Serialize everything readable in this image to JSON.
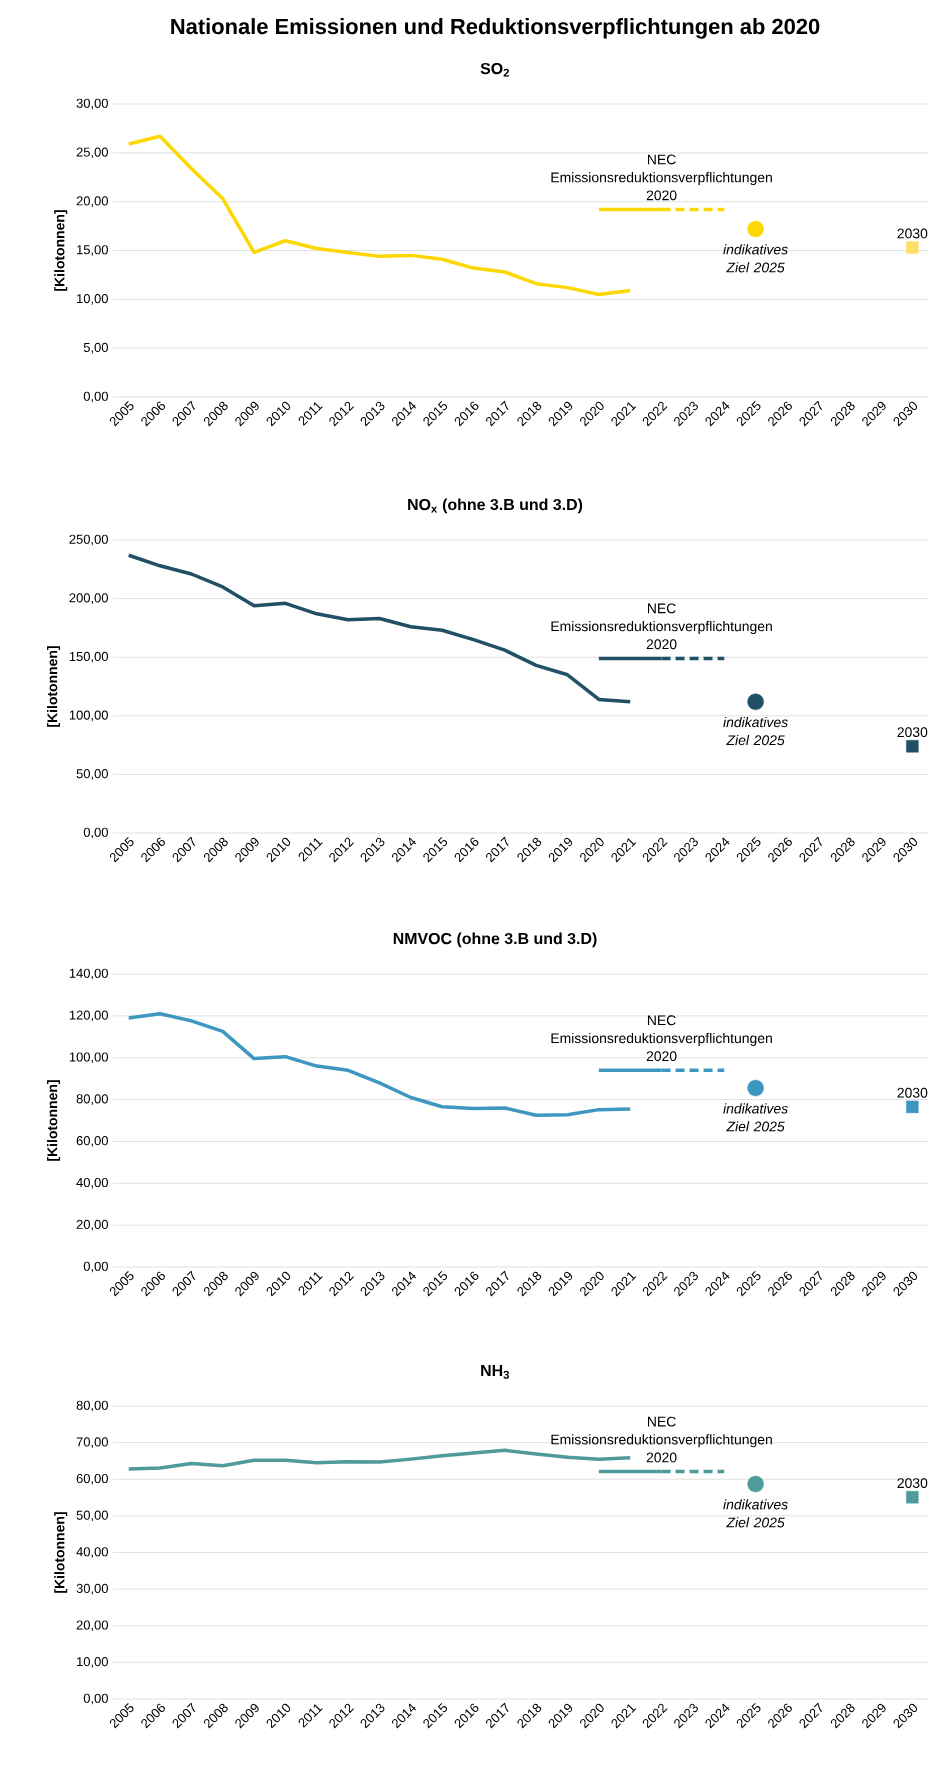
{
  "chart_data": [
    {
      "type": "line",
      "title": "Nationale Emissionen und Reduktionsverpflichtungen ab 2020",
      "subtitle": "SO$_{2}$",
      "ylabel": "[Kilotonnen]",
      "categories": [
        "2005",
        "2006",
        "2007",
        "2008",
        "2009",
        "2010",
        "2011",
        "2012",
        "2013",
        "2014",
        "2015",
        "2016",
        "2017",
        "2018",
        "2019",
        "2020",
        "2021",
        "2022",
        "2023",
        "2024",
        "2025",
        "2026",
        "2027",
        "2028",
        "2029",
        "2030"
      ],
      "ylim": [
        0,
        30
      ],
      "yticks": [
        {
          "value": 0,
          "label": "0,00"
        },
        {
          "value": 5,
          "label": "5,00"
        },
        {
          "value": 10,
          "label": "10,00"
        },
        {
          "value": 15,
          "label": "15,00"
        },
        {
          "value": 20,
          "label": "20,00"
        },
        {
          "value": 25,
          "label": "25,00"
        },
        {
          "value": 30,
          "label": "30,00"
        }
      ],
      "grid": "y",
      "series": [
        {
          "type": "line",
          "color": "#ffd700",
          "values": [
            25.9,
            26.7,
            23.4,
            20.3,
            14.8,
            16.0,
            15.2,
            14.8,
            14.4,
            14.5,
            14.1,
            13.2,
            12.8,
            11.6,
            11.2,
            10.5,
            10.9,
            null,
            null,
            null,
            null,
            null,
            null,
            null,
            null,
            null
          ]
        },
        {
          "type": "line",
          "color": "#ffd700",
          "line_style": "solid",
          "values": [
            null,
            null,
            null,
            null,
            null,
            null,
            null,
            null,
            null,
            null,
            null,
            null,
            null,
            null,
            null,
            19.2,
            19.2,
            19.2,
            null,
            null,
            null,
            null,
            null,
            null,
            null,
            null
          ]
        },
        {
          "type": "line",
          "color": "#ffd700",
          "line_style": "dashed",
          "values": [
            null,
            null,
            null,
            null,
            null,
            null,
            null,
            null,
            null,
            null,
            null,
            null,
            null,
            null,
            null,
            null,
            null,
            19.2,
            19.2,
            19.2,
            null,
            null,
            null,
            null,
            null,
            null
          ]
        },
        {
          "type": "scatter",
          "color": "#ffd700",
          "marker": "circle",
          "values": [
            null,
            null,
            null,
            null,
            null,
            null,
            null,
            null,
            null,
            null,
            null,
            null,
            null,
            null,
            null,
            null,
            null,
            null,
            null,
            null,
            17.2,
            null,
            null,
            null,
            null,
            null
          ]
        },
        {
          "type": "scatter",
          "color": "#ffe066",
          "marker": "square",
          "values": [
            null,
            null,
            null,
            null,
            null,
            null,
            null,
            null,
            null,
            null,
            null,
            null,
            null,
            null,
            null,
            null,
            null,
            null,
            null,
            null,
            null,
            null,
            null,
            null,
            null,
            15.3
          ]
        }
      ],
      "annotations": [
        {
          "text": "NEC Emissionsreduktionsverpflichtungen 2020",
          "x": "2022",
          "y": 19.2
        },
        {
          "text": "indikatives Ziel 2025",
          "x": "2025",
          "y": 17.2
        },
        {
          "text": "2030",
          "x": "2030",
          "y": 15.3
        }
      ]
    },
    {
      "type": "line",
      "title": "NO$_{x}$ (ohne 3.B und 3.D)",
      "ylabel": "[Kilotonnen]",
      "categories": [
        "2005",
        "2006",
        "2007",
        "2008",
        "2009",
        "2010",
        "2011",
        "2012",
        "2013",
        "2014",
        "2015",
        "2016",
        "2017",
        "2018",
        "2019",
        "2020",
        "2021",
        "2022",
        "2023",
        "2024",
        "2025",
        "2026",
        "2027",
        "2028",
        "2029",
        "2030"
      ],
      "ylim": [
        0,
        250
      ],
      "yticks": [
        {
          "value": 0,
          "label": "0,00"
        },
        {
          "value": 50,
          "label": "50,00"
        },
        {
          "value": 100,
          "label": "100,00"
        },
        {
          "value": 150,
          "label": "150,00"
        },
        {
          "value": 200,
          "label": "200,00"
        },
        {
          "value": 250,
          "label": "250,00"
        }
      ],
      "grid": "y",
      "series": [
        {
          "type": "line",
          "color": "#1f5066",
          "values": [
            237,
            228,
            221,
            210,
            194,
            196,
            187,
            182,
            183,
            176,
            173,
            165,
            156,
            143,
            135,
            114,
            112,
            null,
            null,
            null,
            null,
            null,
            null,
            null,
            null,
            null
          ]
        },
        {
          "type": "line",
          "color": "#1f5066",
          "line_style": "solid",
          "values": [
            null,
            null,
            null,
            null,
            null,
            null,
            null,
            null,
            null,
            null,
            null,
            null,
            null,
            null,
            null,
            149,
            149,
            149,
            null,
            null,
            null,
            null,
            null,
            null,
            null,
            null
          ]
        },
        {
          "type": "line",
          "color": "#1f5066",
          "line_style": "dashed",
          "values": [
            null,
            null,
            null,
            null,
            null,
            null,
            null,
            null,
            null,
            null,
            null,
            null,
            null,
            null,
            null,
            null,
            null,
            149,
            149,
            149,
            null,
            null,
            null,
            null,
            null,
            null
          ]
        },
        {
          "type": "scatter",
          "color": "#1f5066",
          "marker": "circle",
          "values": [
            null,
            null,
            null,
            null,
            null,
            null,
            null,
            null,
            null,
            null,
            null,
            null,
            null,
            null,
            null,
            null,
            null,
            null,
            null,
            null,
            112,
            null,
            null,
            null,
            null,
            null
          ]
        },
        {
          "type": "scatter",
          "color": "#1f5066",
          "marker": "square",
          "values": [
            null,
            null,
            null,
            null,
            null,
            null,
            null,
            null,
            null,
            null,
            null,
            null,
            null,
            null,
            null,
            null,
            null,
            null,
            null,
            null,
            null,
            null,
            null,
            null,
            null,
            74
          ]
        }
      ],
      "annotations": [
        {
          "text": "NEC Emissionsreduktionsverpflichtungen 2020",
          "x": "2022",
          "y": 149
        },
        {
          "text": "indikatives Ziel 2025",
          "x": "2025",
          "y": 112
        },
        {
          "text": "2030",
          "x": "2030",
          "y": 74
        }
      ]
    },
    {
      "type": "line",
      "title": "NMVOC (ohne 3.B und 3.D)",
      "ylabel": "[Kilotonnen]",
      "categories": [
        "2005",
        "2006",
        "2007",
        "2008",
        "2009",
        "2010",
        "2011",
        "2012",
        "2013",
        "2014",
        "2015",
        "2016",
        "2017",
        "2018",
        "2019",
        "2020",
        "2021",
        "2022",
        "2023",
        "2024",
        "2025",
        "2026",
        "2027",
        "2028",
        "2029",
        "2030"
      ],
      "ylim": [
        0,
        140
      ],
      "yticks": [
        {
          "value": 0,
          "label": "0,00"
        },
        {
          "value": 20,
          "label": "20,00"
        },
        {
          "value": 40,
          "label": "40,00"
        },
        {
          "value": 60,
          "label": "60,00"
        },
        {
          "value": 80,
          "label": "80,00"
        },
        {
          "value": 100,
          "label": "100,00"
        },
        {
          "value": 120,
          "label": "120,00"
        },
        {
          "value": 140,
          "label": "140,00"
        }
      ],
      "grid": "y",
      "series": [
        {
          "type": "line",
          "color": "#3e97c0",
          "values": [
            119,
            121,
            117.6,
            112.6,
            99.6,
            100.5,
            96,
            94,
            88,
            81,
            76.6,
            75.7,
            76,
            72.5,
            72.8,
            75.2,
            75.5,
            null,
            null,
            null,
            null,
            null,
            null,
            null,
            null,
            null
          ]
        },
        {
          "type": "line",
          "color": "#3e97c0",
          "line_style": "solid",
          "values": [
            null,
            null,
            null,
            null,
            null,
            null,
            null,
            null,
            null,
            null,
            null,
            null,
            null,
            null,
            null,
            94,
            94,
            94,
            null,
            null,
            null,
            null,
            null,
            null,
            null,
            null
          ]
        },
        {
          "type": "line",
          "color": "#3e97c0",
          "line_style": "dashed",
          "values": [
            null,
            null,
            null,
            null,
            null,
            null,
            null,
            null,
            null,
            null,
            null,
            null,
            null,
            null,
            null,
            null,
            null,
            94,
            94,
            94,
            null,
            null,
            null,
            null,
            null,
            null
          ]
        },
        {
          "type": "scatter",
          "color": "#3e97c0",
          "marker": "circle",
          "values": [
            null,
            null,
            null,
            null,
            null,
            null,
            null,
            null,
            null,
            null,
            null,
            null,
            null,
            null,
            null,
            null,
            null,
            null,
            null,
            null,
            85.5,
            null,
            null,
            null,
            null,
            null
          ]
        },
        {
          "type": "scatter",
          "color": "#3e97c0",
          "marker": "square",
          "values": [
            null,
            null,
            null,
            null,
            null,
            null,
            null,
            null,
            null,
            null,
            null,
            null,
            null,
            null,
            null,
            null,
            null,
            null,
            null,
            null,
            null,
            null,
            null,
            null,
            null,
            76.5
          ]
        }
      ],
      "annotations": [
        {
          "text": "NEC Emissionsreduktionsverpflichtungen 2020",
          "x": "2022",
          "y": 94
        },
        {
          "text": "indikatives Ziel 2025",
          "x": "2025",
          "y": 85.5
        },
        {
          "text": "2030",
          "x": "2030",
          "y": 76.5
        }
      ]
    },
    {
      "type": "line",
      "title": "NH$_{3}$",
      "ylabel": "[Kilotonnen]",
      "categories": [
        "2005",
        "2006",
        "2007",
        "2008",
        "2009",
        "2010",
        "2011",
        "2012",
        "2013",
        "2014",
        "2015",
        "2016",
        "2017",
        "2018",
        "2019",
        "2020",
        "2021",
        "2022",
        "2023",
        "2024",
        "2025",
        "2026",
        "2027",
        "2028",
        "2029",
        "2030"
      ],
      "ylim": [
        0,
        80
      ],
      "yticks": [
        {
          "value": 0,
          "label": "0,00"
        },
        {
          "value": 10,
          "label": "10,00"
        },
        {
          "value": 20,
          "label": "20,00"
        },
        {
          "value": 30,
          "label": "30,00"
        },
        {
          "value": 40,
          "label": "40,00"
        },
        {
          "value": 50,
          "label": "50,00"
        },
        {
          "value": 60,
          "label": "60,00"
        },
        {
          "value": 70,
          "label": "70,00"
        },
        {
          "value": 80,
          "label": "80,00"
        }
      ],
      "grid": "y",
      "series": [
        {
          "type": "line",
          "color": "#4f9a9a",
          "values": [
            62.8,
            63.1,
            64.3,
            63.7,
            65.2,
            65.2,
            64.5,
            64.8,
            64.7,
            65.5,
            66.4,
            67.2,
            67.9,
            66.9,
            66,
            65.5,
            65.9,
            null,
            null,
            null,
            null,
            null,
            null,
            null,
            null,
            null
          ]
        },
        {
          "type": "line",
          "color": "#4f9a9a",
          "line_style": "solid",
          "values": [
            null,
            null,
            null,
            null,
            null,
            null,
            null,
            null,
            null,
            null,
            null,
            null,
            null,
            null,
            null,
            62.1,
            62.1,
            62.1,
            null,
            null,
            null,
            null,
            null,
            null,
            null,
            null
          ]
        },
        {
          "type": "line",
          "color": "#4f9a9a",
          "line_style": "dashed",
          "values": [
            null,
            null,
            null,
            null,
            null,
            null,
            null,
            null,
            null,
            null,
            null,
            null,
            null,
            null,
            null,
            null,
            null,
            62.1,
            62.1,
            62.1,
            null,
            null,
            null,
            null,
            null,
            null
          ]
        },
        {
          "type": "scatter",
          "color": "#4f9a9a",
          "marker": "circle",
          "values": [
            null,
            null,
            null,
            null,
            null,
            null,
            null,
            null,
            null,
            null,
            null,
            null,
            null,
            null,
            null,
            null,
            null,
            null,
            null,
            null,
            58.7,
            null,
            null,
            null,
            null,
            null
          ]
        },
        {
          "type": "scatter",
          "color": "#4f9a9a",
          "marker": "square",
          "values": [
            null,
            null,
            null,
            null,
            null,
            null,
            null,
            null,
            null,
            null,
            null,
            null,
            null,
            null,
            null,
            null,
            null,
            null,
            null,
            null,
            null,
            null,
            null,
            null,
            null,
            55.1
          ]
        }
      ],
      "annotations": [
        {
          "text": "NEC Emissionsreduktionsverpflichtungen 2020",
          "x": "2022",
          "y": 62.1
        },
        {
          "text": "indikatives Ziel 2025",
          "x": "2025",
          "y": 58.7
        },
        {
          "text": "2030",
          "x": "2030",
          "y": 55.1
        }
      ]
    }
  ]
}
